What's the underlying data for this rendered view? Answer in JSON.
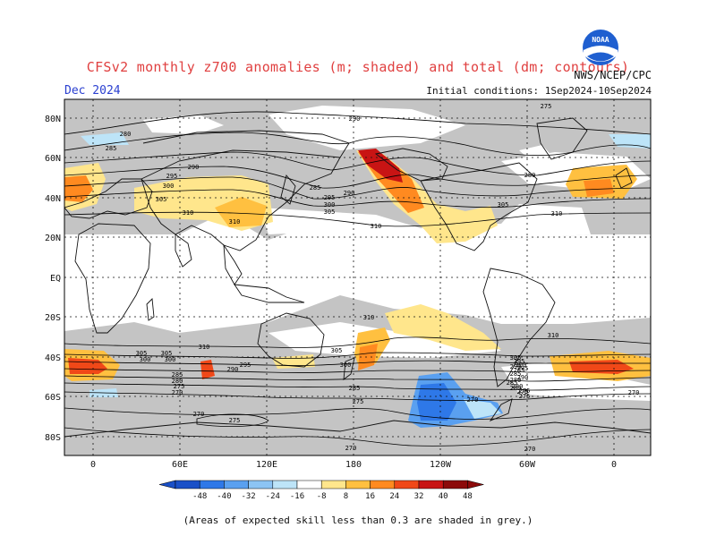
{
  "header": {
    "title": "CFSv2 monthly z700 anomalies (m; shaded) and total (dm; contours)",
    "month": "Dec 2024",
    "agency": "NWS/NCEP/CPC",
    "initial_conditions": "Initial conditions: 1Sep2024-10Sep2024",
    "logo_text": "NOAA"
  },
  "map": {
    "lat_labels": [
      "80N",
      "60N",
      "40N",
      "20N",
      "EQ",
      "20S",
      "40S",
      "60S",
      "80S"
    ],
    "lon_labels": [
      "0",
      "60E",
      "120E",
      "180",
      "120W",
      "60W",
      "0"
    ],
    "contour_labels": [
      {
        "text": "275"
      },
      {
        "text": "280"
      },
      {
        "text": "285"
      },
      {
        "text": "290"
      },
      {
        "text": "295"
      },
      {
        "text": "300"
      },
      {
        "text": "305"
      },
      {
        "text": "310"
      },
      {
        "text": "290"
      },
      {
        "text": "285"
      },
      {
        "text": "295"
      },
      {
        "text": "300"
      },
      {
        "text": "305"
      },
      {
        "text": "310"
      },
      {
        "text": "280"
      },
      {
        "text": "290"
      },
      {
        "text": "305"
      },
      {
        "text": "310"
      },
      {
        "text": "310"
      },
      {
        "text": "310"
      },
      {
        "text": "305"
      },
      {
        "text": "300"
      },
      {
        "text": "295"
      },
      {
        "text": "290"
      },
      {
        "text": "285"
      },
      {
        "text": "280"
      },
      {
        "text": "275"
      },
      {
        "text": "270"
      },
      {
        "text": "305"
      },
      {
        "text": "300"
      },
      {
        "text": "295"
      },
      {
        "text": "290"
      },
      {
        "text": "285"
      },
      {
        "text": "280"
      },
      {
        "text": "275"
      },
      {
        "text": "270"
      },
      {
        "text": "305"
      },
      {
        "text": "300"
      },
      {
        "text": "285"
      },
      {
        "text": "280"
      },
      {
        "text": "275"
      },
      {
        "text": "270"
      },
      {
        "text": "275"
      },
      {
        "text": "270"
      },
      {
        "text": "270"
      },
      {
        "text": "275"
      },
      {
        "text": "270"
      },
      {
        "text": "285"
      },
      {
        "text": "275"
      },
      {
        "text": "270"
      },
      {
        "text": "310"
      },
      {
        "text": "310"
      },
      {
        "text": "305"
      },
      {
        "text": "300"
      },
      {
        "text": "295"
      },
      {
        "text": "290"
      },
      {
        "text": "285"
      },
      {
        "text": "280"
      }
    ]
  },
  "colorbar": {
    "ticks": [
      "-48",
      "-40",
      "-32",
      "-24",
      "-16",
      "-8",
      "8",
      "16",
      "24",
      "32",
      "40",
      "48"
    ],
    "colors": [
      "#1a50c8",
      "#2e78e8",
      "#5aa0f0",
      "#8cc4f4",
      "#bde4f8",
      "#ffffff",
      "#ffe68c",
      "#ffc040",
      "#ff8a20",
      "#f04818",
      "#c81414",
      "#8c0a0a"
    ]
  },
  "footnote": "(Areas of expected skill less than 0.3 are shaded in grey.)"
}
